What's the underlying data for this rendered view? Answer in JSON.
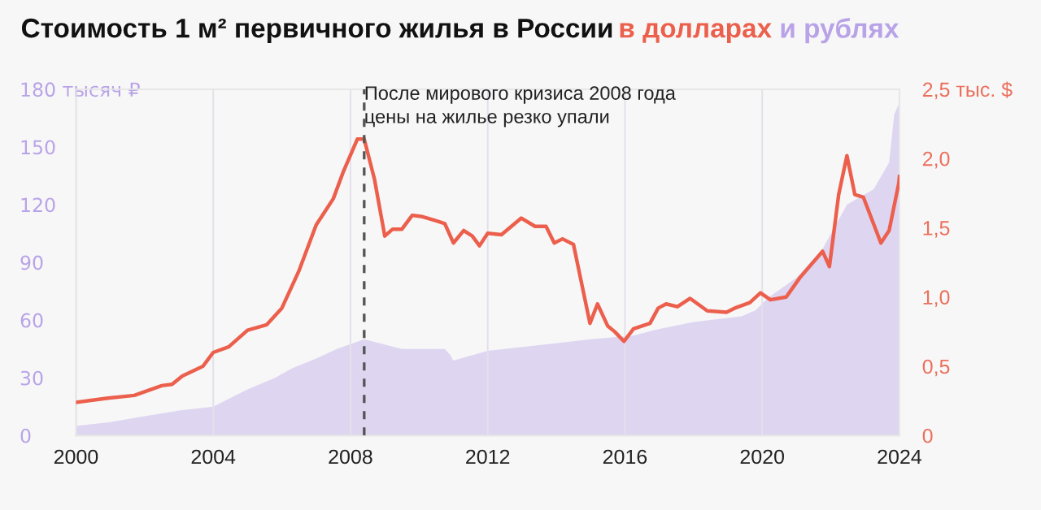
{
  "chart_data": {
    "type": "line",
    "title": "Стоимость 1 м² первичного жилья в России",
    "xlim": [
      2000,
      2024
    ],
    "xticks": [
      2000,
      2004,
      2008,
      2012,
      2016,
      2020,
      2024
    ],
    "ylim": [
      0,
      180
    ],
    "yticks": [
      0,
      30,
      60,
      90,
      120,
      150,
      {
        "value": 180,
        "label": "180 тысяч ₽"
      }
    ],
    "y2lim": [
      0,
      2.5
    ],
    "y2ticks": [
      {
        "value": 0,
        "label": "0"
      },
      {
        "value": 0.5,
        "label": "0,5"
      },
      {
        "value": 1.0,
        "label": "1,0"
      },
      {
        "value": 1.5,
        "label": "1,5"
      },
      {
        "value": 2.0,
        "label": "2,0"
      },
      {
        "value": 2.5,
        "label": "2,5 тыс. $"
      }
    ],
    "grid": "x",
    "legend": false,
    "ref_lines": [
      {
        "axis": "x",
        "value": 2008.4,
        "label": "После мирового кризиса 2008 года\nцены на жилье резко упали",
        "color": "#555555",
        "line_style": "dashed"
      }
    ],
    "series": [
      {
        "name": "и рублях",
        "type": "area",
        "color": "#b9a3e8",
        "x": [
          2000,
          2001,
          2002,
          2003,
          2004,
          2005,
          2005.8,
          2006.3,
          2007,
          2007.6,
          2008.4,
          2009.5,
          2010.75,
          2010.9,
          2011,
          2012,
          2013.5,
          2015,
          2016.25,
          2016.9,
          2018,
          2019.4,
          2019.8,
          2020.2,
          2021,
          2021.76,
          2022.47,
          2023.25,
          2023.7,
          2023.85,
          2024
        ],
        "values": [
          5,
          7,
          10,
          13,
          15,
          24,
          30,
          35,
          40,
          45,
          50,
          45,
          45,
          42,
          39,
          44,
          47,
          50,
          52,
          55,
          59,
          62,
          65,
          72,
          82,
          97,
          120,
          128,
          142,
          167,
          173
        ]
      },
      {
        "name": "в долларах",
        "axis": "y2",
        "color": "#ec5f4c",
        "x": [
          2000,
          2000.93,
          2001.7,
          2002.5,
          2002.8,
          2003.1,
          2003.7,
          2004,
          2004.45,
          2005,
          2005.56,
          2006,
          2006.5,
          2007,
          2007.5,
          2007.8,
          2008.2,
          2008.4,
          2008.7,
          2009,
          2009.23,
          2009.5,
          2009.8,
          2010.1,
          2010.5,
          2010.75,
          2011,
          2011.3,
          2011.55,
          2011.76,
          2012,
          2012.4,
          2012.98,
          2013.38,
          2013.7,
          2013.94,
          2014.18,
          2014.5,
          2014.98,
          2015.2,
          2015.5,
          2015.7,
          2015.97,
          2016.25,
          2016.73,
          2016.97,
          2017.2,
          2017.53,
          2017.9,
          2018.4,
          2018.96,
          2019.2,
          2019.64,
          2019.95,
          2020.24,
          2020.7,
          2021.1,
          2021.76,
          2021.96,
          2022.23,
          2022.47,
          2022.7,
          2022.95,
          2023.46,
          2023.7,
          2023.98,
          2024
        ],
        "values": [
          0.24,
          0.27,
          0.29,
          0.36,
          0.37,
          0.43,
          0.5,
          0.6,
          0.64,
          0.76,
          0.8,
          0.92,
          1.19,
          1.52,
          1.71,
          1.91,
          2.14,
          2.14,
          1.85,
          1.44,
          1.49,
          1.49,
          1.59,
          1.58,
          1.55,
          1.53,
          1.39,
          1.48,
          1.44,
          1.37,
          1.46,
          1.45,
          1.57,
          1.51,
          1.51,
          1.39,
          1.42,
          1.38,
          0.81,
          0.95,
          0.79,
          0.75,
          0.68,
          0.77,
          0.81,
          0.92,
          0.95,
          0.93,
          0.99,
          0.9,
          0.89,
          0.92,
          0.96,
          1.03,
          0.98,
          1.0,
          1.14,
          1.33,
          1.22,
          1.74,
          2.02,
          1.74,
          1.72,
          1.39,
          1.48,
          1.82,
          1.87
        ]
      }
    ]
  }
}
